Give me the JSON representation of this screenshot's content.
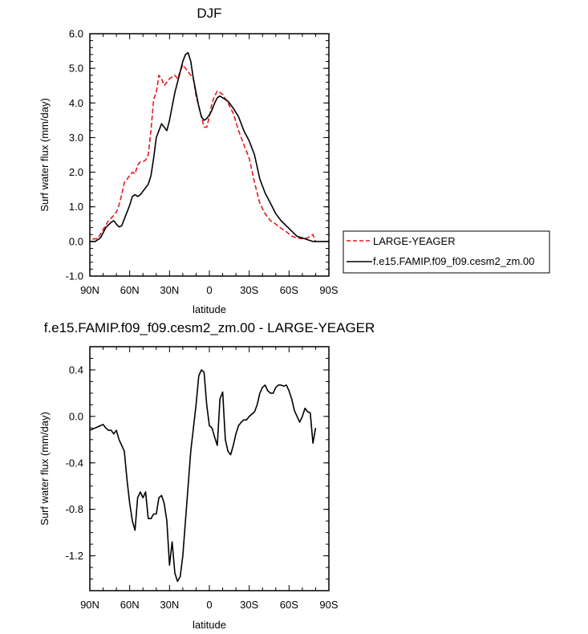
{
  "chart_data": [
    {
      "type": "line",
      "title": "DJF",
      "xlabel": "latitude",
      "ylabel": "Surf water flux (mm/day)",
      "xlim": [
        90,
        -90
      ],
      "ylim": [
        -1.0,
        6.0
      ],
      "x_ticks": [
        {
          "value": 90,
          "label": "90N"
        },
        {
          "value": 60,
          "label": "60N"
        },
        {
          "value": 30,
          "label": "30N"
        },
        {
          "value": 0,
          "label": "0"
        },
        {
          "value": -30,
          "label": "30S"
        },
        {
          "value": -60,
          "label": "60S"
        },
        {
          "value": -90,
          "label": "90S"
        }
      ],
      "y_ticks": [
        {
          "value": -1.0,
          "label": "-1.0"
        },
        {
          "value": 0.0,
          "label": "0.0"
        },
        {
          "value": 1.0,
          "label": "1.0"
        },
        {
          "value": 2.0,
          "label": "2.0"
        },
        {
          "value": 3.0,
          "label": "3.0"
        },
        {
          "value": 4.0,
          "label": "4.0"
        },
        {
          "value": 5.0,
          "label": "5.0"
        },
        {
          "value": 6.0,
          "label": "6.0"
        }
      ],
      "legend_position": "right",
      "series": [
        {
          "name": "LARGE-YEAGER",
          "color": "#e41a1c",
          "dash": true,
          "x": [
            88,
            84,
            80,
            76,
            72,
            70,
            68,
            66,
            64,
            62,
            60,
            58,
            56,
            54,
            52,
            50,
            48,
            46,
            44,
            42,
            40,
            38,
            36,
            34,
            32,
            30,
            28,
            26,
            24,
            22,
            20,
            18,
            16,
            14,
            12,
            10,
            8,
            6,
            4,
            2,
            0,
            -2,
            -4,
            -6,
            -8,
            -10,
            -14,
            -18,
            -22,
            -26,
            -30,
            -34,
            -38,
            -42,
            -46,
            -50,
            -54,
            -58,
            -62,
            -66,
            -70,
            -74,
            -78,
            -80
          ],
          "y": [
            0.07,
            0.08,
            0.35,
            0.6,
            0.75,
            0.85,
            1.05,
            1.35,
            1.7,
            1.8,
            1.9,
            2.0,
            1.95,
            2.2,
            2.3,
            2.3,
            2.35,
            2.5,
            3.2,
            4.1,
            4.3,
            4.8,
            4.7,
            4.5,
            4.6,
            4.7,
            4.75,
            4.8,
            4.7,
            4.9,
            5.1,
            5.0,
            4.9,
            4.8,
            4.7,
            4.2,
            3.9,
            3.6,
            3.3,
            3.3,
            3.6,
            4.0,
            4.2,
            4.35,
            4.3,
            4.25,
            4.0,
            3.7,
            3.2,
            2.8,
            2.4,
            1.7,
            1.1,
            0.8,
            0.6,
            0.5,
            0.38,
            0.28,
            0.15,
            0.1,
            0.08,
            0.1,
            0.2,
            0.0
          ]
        },
        {
          "name": "f.e15.FAMIP.f09_f09.cesm2_zm.00",
          "color": "#000000",
          "dash": false,
          "x": [
            90,
            86,
            82,
            78,
            74,
            72,
            70,
            68,
            66,
            64,
            62,
            60,
            58,
            56,
            54,
            52,
            50,
            48,
            46,
            44,
            42,
            40,
            38,
            36,
            34,
            32,
            30,
            28,
            26,
            24,
            22,
            20,
            18,
            16,
            14,
            12,
            10,
            8,
            6,
            4,
            2,
            0,
            -2,
            -4,
            -6,
            -8,
            -10,
            -12,
            -14,
            -18,
            -22,
            -26,
            -30,
            -34,
            -38,
            -42,
            -46,
            -50,
            -54,
            -58,
            -62,
            -66,
            -70,
            -74,
            -78,
            -82,
            -86,
            -90
          ],
          "y": [
            0.0,
            0.0,
            0.1,
            0.4,
            0.55,
            0.6,
            0.5,
            0.42,
            0.45,
            0.65,
            0.85,
            1.05,
            1.3,
            1.35,
            1.3,
            1.35,
            1.45,
            1.55,
            1.65,
            1.9,
            2.4,
            3.0,
            3.2,
            3.4,
            3.3,
            3.2,
            3.5,
            3.9,
            4.3,
            4.6,
            4.9,
            5.2,
            5.4,
            5.45,
            5.2,
            4.7,
            4.3,
            3.9,
            3.6,
            3.5,
            3.55,
            3.65,
            3.8,
            4.0,
            4.15,
            4.2,
            4.15,
            4.1,
            4.05,
            3.85,
            3.6,
            3.2,
            2.9,
            2.5,
            1.8,
            1.4,
            1.1,
            0.8,
            0.6,
            0.45,
            0.3,
            0.15,
            0.1,
            0.05,
            0.0,
            0.0,
            0.0,
            0.0
          ]
        }
      ]
    },
    {
      "type": "line",
      "title": "f.e15.FAMIP.f09_f09.cesm2_zm.00 - LARGE-YEAGER",
      "xlabel": "latitude",
      "ylabel": "Surf water flux (mm/day)",
      "xlim": [
        90,
        -90
      ],
      "ylim": [
        -1.5,
        0.6
      ],
      "x_ticks": [
        {
          "value": 90,
          "label": "90N"
        },
        {
          "value": 60,
          "label": "60N"
        },
        {
          "value": 30,
          "label": "30N"
        },
        {
          "value": 0,
          "label": "0"
        },
        {
          "value": -30,
          "label": "30S"
        },
        {
          "value": -60,
          "label": "60S"
        },
        {
          "value": -90,
          "label": "90S"
        }
      ],
      "y_ticks": [
        {
          "value": -1.2,
          "label": "-1.2"
        },
        {
          "value": -0.8,
          "label": "-0.8"
        },
        {
          "value": -0.4,
          "label": "-0.4"
        },
        {
          "value": 0.0,
          "label": "0.0"
        },
        {
          "value": 0.4,
          "label": "0.4"
        }
      ],
      "series": [
        {
          "name": "f.e15.FAMIP.f09_f09.cesm2_zm.00 - LARGE-YEAGER",
          "color": "#000000",
          "dash": false,
          "x": [
            90,
            88,
            86,
            84,
            82,
            80,
            78,
            76,
            74,
            72,
            70,
            68,
            66,
            64,
            62,
            60,
            58,
            56,
            54,
            52,
            50,
            48,
            46,
            44,
            42,
            40,
            38,
            36,
            34,
            32,
            30,
            28,
            26,
            24,
            22,
            20,
            18,
            16,
            14,
            12,
            10,
            8,
            6,
            4,
            2,
            0,
            -2,
            -4,
            -6,
            -8,
            -10,
            -12,
            -14,
            -16,
            -18,
            -20,
            -22,
            -24,
            -26,
            -28,
            -30,
            -32,
            -34,
            -36,
            -38,
            -40,
            -42,
            -44,
            -46,
            -48,
            -50,
            -52,
            -54,
            -56,
            -58,
            -60,
            -62,
            -64,
            -66,
            -68,
            -70,
            -72,
            -74,
            -76,
            -78,
            -80
          ],
          "y": [
            -0.12,
            -0.11,
            -0.1,
            -0.09,
            -0.08,
            -0.07,
            -0.1,
            -0.12,
            -0.12,
            -0.15,
            -0.12,
            -0.2,
            -0.25,
            -0.3,
            -0.55,
            -0.75,
            -0.9,
            -0.98,
            -0.7,
            -0.65,
            -0.7,
            -0.65,
            -0.88,
            -0.88,
            -0.84,
            -0.84,
            -0.7,
            -0.68,
            -0.75,
            -0.9,
            -1.28,
            -1.08,
            -1.35,
            -1.42,
            -1.38,
            -1.2,
            -0.9,
            -0.6,
            -0.3,
            -0.1,
            0.1,
            0.35,
            0.4,
            0.38,
            0.1,
            -0.08,
            -0.1,
            -0.18,
            -0.25,
            0.15,
            0.21,
            -0.2,
            -0.3,
            -0.33,
            -0.25,
            -0.15,
            -0.08,
            -0.05,
            -0.03,
            -0.03,
            0.0,
            0.02,
            0.04,
            0.1,
            0.2,
            0.25,
            0.27,
            0.22,
            0.2,
            0.2,
            0.25,
            0.27,
            0.27,
            0.26,
            0.27,
            0.22,
            0.15,
            0.05,
            0.0,
            -0.05,
            0.0,
            0.07,
            0.04,
            0.03,
            -0.23,
            -0.1
          ]
        }
      ]
    }
  ]
}
